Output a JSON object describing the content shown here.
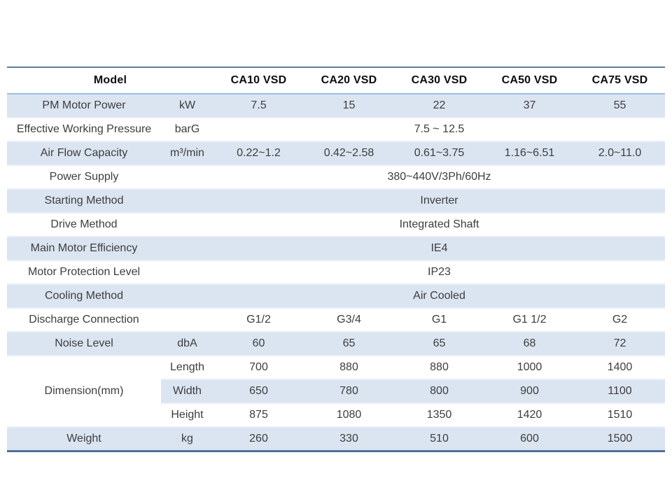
{
  "colors": {
    "row_shade": "#dbe5f1",
    "row_shade_edge": "#e9eff8",
    "table_top_border": "#5b7e9e",
    "table_bottom_border": "#4e7096",
    "header_divider": "#a0bedf",
    "body_text": "#3d3d3d",
    "header_text": "#0d0d0d"
  },
  "table": {
    "model_header": "Model",
    "models": [
      "CA10 VSD",
      "CA20 VSD",
      "CA30 VSD",
      "CA50 VSD",
      "CA75 VSD"
    ],
    "rows": [
      {
        "label": "PM Motor Power",
        "unit": "kW",
        "shaded": true,
        "values": [
          "7.5",
          "15",
          "22",
          "37",
          "55"
        ]
      },
      {
        "label": "Effective Working Pressure",
        "unit": "barG",
        "shaded": false,
        "merged": "7.5 ~ 12.5"
      },
      {
        "label": "Air Flow Capacity",
        "unit": "m³/min",
        "shaded": true,
        "values": [
          "0.22~1.2",
          "0.42~2.58",
          "0.61~3.75",
          "1.16~6.51",
          "2.0~11.0"
        ]
      },
      {
        "label": "Power Supply",
        "unit": "",
        "shaded": false,
        "merged": "380~440V/3Ph/60Hz"
      },
      {
        "label": "Starting Method",
        "unit": "",
        "shaded": true,
        "merged": "Inverter"
      },
      {
        "label": "Drive Method",
        "unit": "",
        "shaded": false,
        "merged": "Integrated Shaft"
      },
      {
        "label": "Main Motor Efficiency",
        "unit": "",
        "shaded": true,
        "merged": "IE4"
      },
      {
        "label": "Motor Protection Level",
        "unit": "",
        "shaded": false,
        "merged": "IP23"
      },
      {
        "label": "Cooling Method",
        "unit": "",
        "shaded": true,
        "merged": "Air Cooled"
      },
      {
        "label": "Discharge Connection",
        "unit": "",
        "shaded": false,
        "values": [
          "G1/2",
          "G3/4",
          "G1",
          "G1 1/2",
          "G2"
        ]
      },
      {
        "label": "Noise Level",
        "unit": "dbA",
        "shaded": true,
        "values": [
          "60",
          "65",
          "65",
          "68",
          "72"
        ]
      }
    ],
    "dimension": {
      "label": "Dimension(mm)",
      "sub_rows": [
        {
          "name": "Length",
          "shaded": false,
          "values": [
            "700",
            "880",
            "880",
            "1000",
            "1400"
          ]
        },
        {
          "name": "Width",
          "shaded": true,
          "values": [
            "650",
            "780",
            "800",
            "900",
            "1100"
          ]
        },
        {
          "name": "Height",
          "shaded": false,
          "values": [
            "875",
            "1080",
            "1350",
            "1420",
            "1510"
          ]
        }
      ]
    },
    "weight": {
      "label": "Weight",
      "unit": "kg",
      "shaded": true,
      "values": [
        "260",
        "330",
        "510",
        "600",
        "1500"
      ]
    }
  }
}
